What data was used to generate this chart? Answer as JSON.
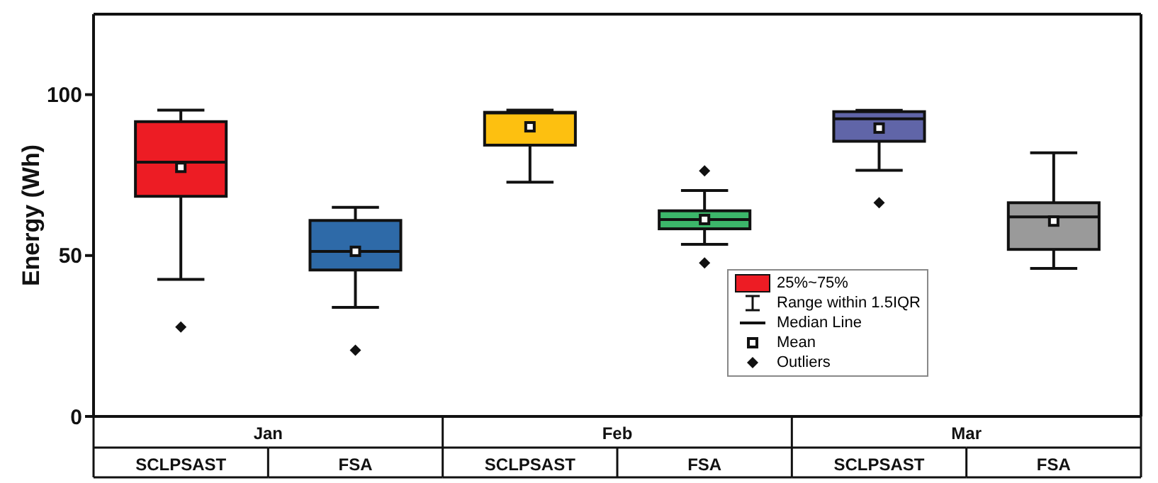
{
  "chart_data": {
    "type": "box",
    "ylabel": "Energy (Wh)",
    "categories": [
      "SCLPSAST",
      "FSA",
      "SCLPSAST",
      "FSA",
      "SCLPSAST",
      "FSA"
    ],
    "colors": [
      "#ed1c24",
      "#2e6aa8",
      "#fdc010",
      "#3cb66a",
      "#6065a8",
      "#9a9a9a"
    ],
    "boxes": [
      {
        "low": 42.6,
        "q1": 68.4,
        "median": 79,
        "q3": 91.6,
        "high": 95.2,
        "mean": 77.4,
        "outliers": [
          27.8
        ]
      },
      {
        "low": 33.9,
        "q1": 45.5,
        "median": 51.3,
        "q3": 60.9,
        "high": 65,
        "mean": 51.3,
        "outliers": [
          20.6
        ]
      },
      {
        "low": 72.8,
        "q1": 84.3,
        "median": 94.3,
        "q3": 94.5,
        "high": 95.2,
        "mean": 90
      },
      {
        "low": 53.5,
        "q1": 58.3,
        "median": 61.2,
        "q3": 63.9,
        "high": 70.2,
        "mean": 61.2,
        "outliers": [
          76.3,
          47.7
        ]
      },
      {
        "low": 76.5,
        "q1": 85.5,
        "median": 92.5,
        "q3": 94.7,
        "high": 95.1,
        "mean": 89.6,
        "outliers": [
          66.4
        ]
      },
      {
        "low": 46,
        "q1": 51.9,
        "median": 62,
        "q3": 66.4,
        "high": 81.9,
        "mean": 60.7
      }
    ],
    "ylim": [
      0,
      125
    ],
    "yticks": [
      0,
      50,
      100
    ],
    "annotations": [
      "Jan",
      "Feb",
      "Mar",
      "25%~75%",
      "Range within 1.5IQR",
      "Median Line",
      "Mean",
      "Outliers"
    ]
  }
}
